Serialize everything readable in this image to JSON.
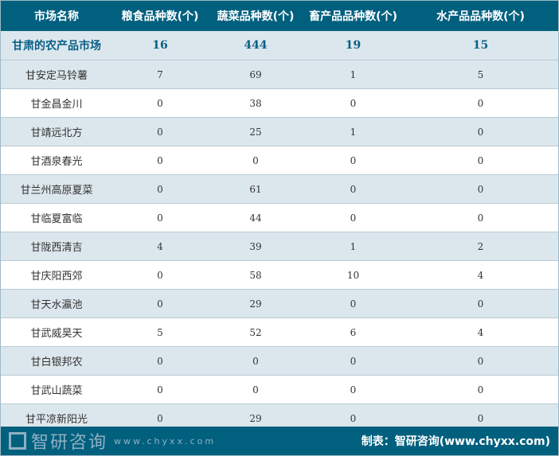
{
  "header": [
    "市场名称",
    "粮食品种数(个)",
    "蔬菜品种数(个)",
    "畜产品品种数(个)",
    "水产品品种数(个)"
  ],
  "summary": [
    "甘肃的农产品市场",
    "16",
    "444",
    "19",
    "15"
  ],
  "rows": [
    [
      "甘安定马铃薯",
      "7",
      "69",
      "1",
      "5"
    ],
    [
      "甘金昌金川",
      "0",
      "38",
      "0",
      "0"
    ],
    [
      "甘靖远北方",
      "0",
      "25",
      "1",
      "0"
    ],
    [
      "甘酒泉春光",
      "0",
      "0",
      "0",
      "0"
    ],
    [
      "甘兰州高原夏菜",
      "0",
      "61",
      "0",
      "0"
    ],
    [
      "甘临夏富临",
      "0",
      "44",
      "0",
      "0"
    ],
    [
      "甘陇西清吉",
      "4",
      "39",
      "1",
      "2"
    ],
    [
      "甘庆阳西郊",
      "0",
      "58",
      "10",
      "4"
    ],
    [
      "甘天水瀛池",
      "0",
      "29",
      "0",
      "0"
    ],
    [
      "甘武威昊天",
      "5",
      "52",
      "6",
      "4"
    ],
    [
      "甘白银邦农",
      "0",
      "0",
      "0",
      "0"
    ],
    [
      "甘武山蔬菜",
      "0",
      "0",
      "0",
      "0"
    ],
    [
      "甘平凉新阳光",
      "0",
      "29",
      "0",
      "0"
    ]
  ],
  "watermark": {
    "name": "智研咨询",
    "url": "www.chyxx.com"
  },
  "footer": "制表：智研咨询(www.chyxx.com)",
  "colors": {
    "header": "#02607f",
    "stripe": "#dce7ed"
  }
}
